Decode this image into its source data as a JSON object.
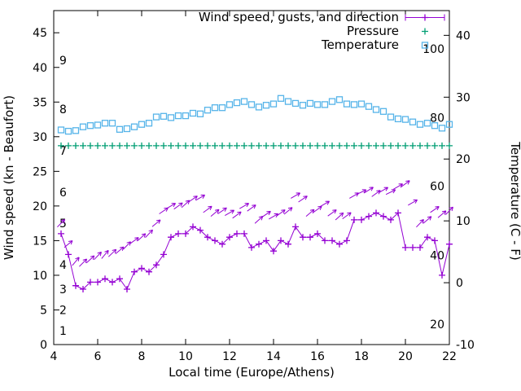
{
  "chart_data": {
    "type": "line",
    "title": "",
    "xlabel": "Local time (Europe/Athens)",
    "ylabel_left": "Wind speed (kn - Beaufort)",
    "ylabel_right": "Temperature (C - F)",
    "xlim": [
      4,
      22
    ],
    "left_ylim": [
      0,
      48.2
    ],
    "right_ylim": [
      -10,
      44
    ],
    "x_ticks": [
      4,
      6,
      8,
      10,
      12,
      14,
      16,
      18,
      20,
      22
    ],
    "left_ticks": [
      0,
      5,
      10,
      15,
      20,
      25,
      30,
      35,
      40,
      45
    ],
    "right_ticks": [
      -10,
      0,
      10,
      20,
      30,
      40
    ],
    "grid": false,
    "legend_position": "top-right-inside",
    "beaufort_scale_labels": [
      {
        "label": "1",
        "kn": 2
      },
      {
        "label": "2",
        "kn": 5
      },
      {
        "label": "3",
        "kn": 8
      },
      {
        "label": "4",
        "kn": 11.5
      },
      {
        "label": "5",
        "kn": 17.5
      },
      {
        "label": "6",
        "kn": 22
      },
      {
        "label": "7",
        "kn": 28
      },
      {
        "label": "8",
        "kn": 34
      },
      {
        "label": "9",
        "kn": 41
      }
    ],
    "fahrenheit_scale_labels": [
      {
        "label": "20",
        "c": -6.7
      },
      {
        "label": "40",
        "c": 4.4
      },
      {
        "label": "60",
        "c": 15.6
      },
      {
        "label": "80",
        "c": 26.7
      },
      {
        "label": "100",
        "c": 37.8
      }
    ],
    "legend": [
      {
        "label": "Wind speed, gusts, and direction",
        "series": "wind",
        "color": "#9400d3",
        "marker": "errorbar-plus"
      },
      {
        "label": "Pressure",
        "series": "pressure",
        "color": "#009e73",
        "marker": "plus"
      },
      {
        "label": "Temperature",
        "series": "temperature",
        "color": "#56b4e9",
        "marker": "open-square"
      }
    ],
    "x_start": 4.3333,
    "x_step": 0.3333,
    "series": {
      "wind_kn": [
        16,
        13,
        8.5,
        8,
        9,
        9,
        9.5,
        9,
        9.5,
        8,
        10.5,
        11,
        10.5,
        11.5,
        13,
        15.5,
        16,
        16,
        17,
        16.5,
        15.5,
        15,
        14.5,
        15.5,
        16,
        16,
        14,
        14.5,
        15,
        13.5,
        15,
        14.5,
        17,
        15.5,
        15.5,
        16,
        15,
        15,
        14.5,
        15,
        18,
        18,
        18.5,
        19,
        18.5,
        18,
        19,
        14,
        14,
        14,
        15.5,
        15,
        10,
        14.5
      ],
      "gust_kn": [
        17.5,
        14.5,
        12,
        11.8,
        12.3,
        12.8,
        13,
        13.2,
        13.6,
        14.3,
        15,
        15.5,
        16,
        17.5,
        19.3,
        20,
        20,
        20.3,
        21,
        21.2,
        19.5,
        19,
        19.3,
        19,
        18.7,
        20,
        19.7,
        18,
        18.8,
        18.5,
        19,
        19.3,
        21.5,
        21,
        19,
        19.5,
        20.3,
        19,
        18.5,
        18.6,
        21.5,
        22,
        22.3,
        21.8,
        22.3,
        22,
        22.8,
        23.2,
        20.5,
        17.5,
        18,
        19.5,
        18.8,
        19.3
      ],
      "gust_dir_deg": [
        45,
        40,
        50,
        45,
        42,
        46,
        50,
        44,
        40,
        46,
        36,
        42,
        46,
        40,
        34,
        30,
        36,
        42,
        34,
        30,
        36,
        40,
        34,
        30,
        36,
        30,
        36,
        42,
        34,
        30,
        36,
        40,
        30,
        34,
        40,
        36,
        30,
        36,
        42,
        36,
        30,
        26,
        32,
        36,
        30,
        26,
        30,
        36,
        30,
        46,
        40,
        34,
        40,
        46
      ],
      "pressure_level_kn_axis": 28.7,
      "temperature_c": [
        24.7,
        24.5,
        24.6,
        25.2,
        25.4,
        25.5,
        25.8,
        25.8,
        24.8,
        24.9,
        25.2,
        25.6,
        25.8,
        26.8,
        26.9,
        26.7,
        27.0,
        27.0,
        27.4,
        27.3,
        27.9,
        28.3,
        28.3,
        28.8,
        29.1,
        29.3,
        28.8,
        28.4,
        28.7,
        28.9,
        29.8,
        29.3,
        29.0,
        28.7,
        29.0,
        28.8,
        28.8,
        29.3,
        29.6,
        28.9,
        28.8,
        28.9,
        28.5,
        28.0,
        27.7,
        26.8,
        26.5,
        26.4,
        26.0,
        25.6,
        25.8,
        25.4,
        25.0,
        25.6
      ]
    }
  },
  "colors": {
    "axis": "#000000",
    "background": "#ffffff"
  }
}
